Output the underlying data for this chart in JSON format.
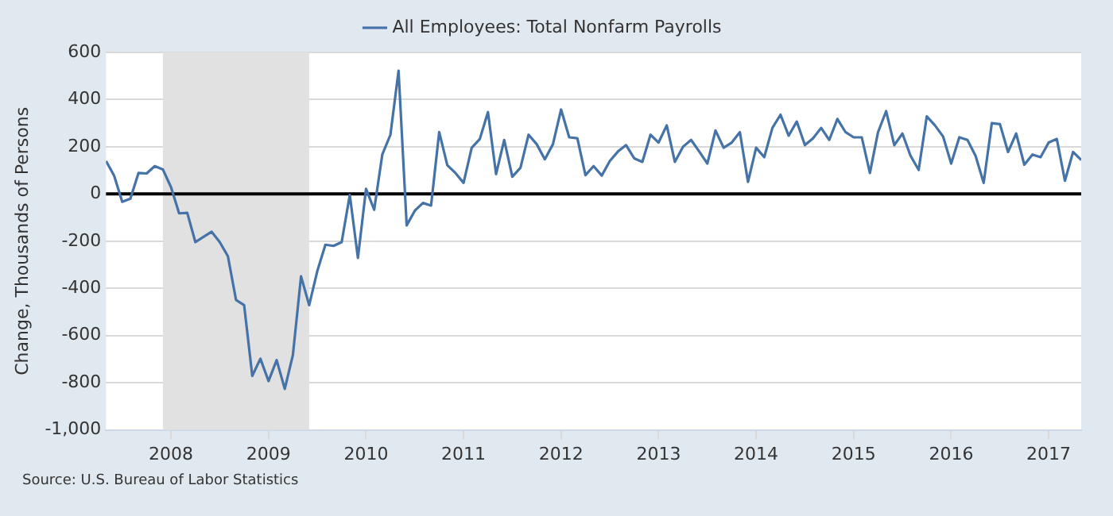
{
  "chart_data": {
    "type": "line",
    "ylabel": "Change, Thousands of Persons",
    "annotations": [
      "Source: U.S. Bureau of Labor Statistics"
    ],
    "x": [
      "2007-05",
      "2007-06",
      "2007-07",
      "2007-08",
      "2007-09",
      "2007-10",
      "2007-11",
      "2007-12",
      "2008-01",
      "2008-02",
      "2008-03",
      "2008-04",
      "2008-05",
      "2008-06",
      "2008-07",
      "2008-08",
      "2008-09",
      "2008-10",
      "2008-11",
      "2008-12",
      "2009-01",
      "2009-02",
      "2009-03",
      "2009-04",
      "2009-05",
      "2009-06",
      "2009-07",
      "2009-08",
      "2009-09",
      "2009-10",
      "2009-11",
      "2009-12",
      "2010-01",
      "2010-02",
      "2010-03",
      "2010-04",
      "2010-05",
      "2010-06",
      "2010-07",
      "2010-08",
      "2010-09",
      "2010-10",
      "2010-11",
      "2010-12",
      "2011-01",
      "2011-02",
      "2011-03",
      "2011-04",
      "2011-05",
      "2011-06",
      "2011-07",
      "2011-08",
      "2011-09",
      "2011-10",
      "2011-11",
      "2011-12",
      "2012-01",
      "2012-02",
      "2012-03",
      "2012-04",
      "2012-05",
      "2012-06",
      "2012-07",
      "2012-08",
      "2012-09",
      "2012-10",
      "2012-11",
      "2012-12",
      "2013-01",
      "2013-02",
      "2013-03",
      "2013-04",
      "2013-05",
      "2013-06",
      "2013-07",
      "2013-08",
      "2013-09",
      "2013-10",
      "2013-11",
      "2013-12",
      "2014-01",
      "2014-02",
      "2014-03",
      "2014-04",
      "2014-05",
      "2014-06",
      "2014-07",
      "2014-08",
      "2014-09",
      "2014-10",
      "2014-11",
      "2014-12",
      "2015-01",
      "2015-02",
      "2015-03",
      "2015-04",
      "2015-05",
      "2015-06",
      "2015-07",
      "2015-08",
      "2015-09",
      "2015-10",
      "2015-11",
      "2015-12",
      "2016-01",
      "2016-02",
      "2016-03",
      "2016-04",
      "2016-05",
      "2016-06",
      "2016-07",
      "2016-08",
      "2016-09",
      "2016-10",
      "2016-11",
      "2016-12",
      "2017-01",
      "2017-02",
      "2017-03",
      "2017-04",
      "2017-05"
    ],
    "series": [
      {
        "name": "All Employees: Total Nonfarm Payrolls",
        "color": "#4572a7",
        "values": [
          140,
          78,
          -33,
          -20,
          89,
          87,
          118,
          104,
          29,
          -82,
          -80,
          -204,
          -182,
          -160,
          -204,
          -264,
          -449,
          -471,
          -771,
          -698,
          -793,
          -704,
          -826,
          -682,
          -349,
          -471,
          -327,
          -215,
          -220,
          -204,
          -4,
          -271,
          22,
          -67,
          167,
          251,
          522,
          -133,
          -71,
          -38,
          -49,
          262,
          122,
          89,
          47,
          196,
          233,
          347,
          84,
          229,
          73,
          111,
          251,
          211,
          147,
          211,
          358,
          240,
          236,
          80,
          118,
          78,
          140,
          180,
          207,
          151,
          136,
          251,
          218,
          291,
          136,
          200,
          229,
          180,
          129,
          269,
          196,
          218,
          262,
          51,
          196,
          156,
          280,
          336,
          247,
          307,
          207,
          236,
          280,
          229,
          318,
          262,
          240,
          240,
          89,
          262,
          351,
          207,
          256,
          162,
          102,
          329,
          291,
          244,
          129,
          240,
          229,
          162,
          47,
          300,
          296,
          178,
          256,
          124,
          167,
          156,
          218,
          233,
          56,
          178,
          144
        ]
      }
    ],
    "xlim": [
      "2007-05",
      "2017-05"
    ],
    "xticks": [
      {
        "value": "2008",
        "label": "2008"
      },
      {
        "value": "2009",
        "label": "2009"
      },
      {
        "value": "2010",
        "label": "2010"
      },
      {
        "value": "2011",
        "label": "2011"
      },
      {
        "value": "2012",
        "label": "2012"
      },
      {
        "value": "2013",
        "label": "2013"
      },
      {
        "value": "2014",
        "label": "2014"
      },
      {
        "value": "2015",
        "label": "2015"
      },
      {
        "value": "2016",
        "label": "2016"
      },
      {
        "value": "2017",
        "label": "2017"
      }
    ],
    "ylim": [
      -1000,
      600
    ],
    "yticks": [
      {
        "value": -1000,
        "label": "-1,000"
      },
      -800,
      -600,
      -400,
      -200,
      0,
      200,
      400,
      600
    ],
    "ref_lines": [
      {
        "axis": "y",
        "value": 0,
        "color": "#000000"
      }
    ],
    "bands": [
      {
        "axis": "x",
        "from": "2007-12",
        "to": "2009-06",
        "color": "#e1e1e1"
      }
    ],
    "grid": "y",
    "legend": "top",
    "marker": "none",
    "line_style": "solid"
  }
}
